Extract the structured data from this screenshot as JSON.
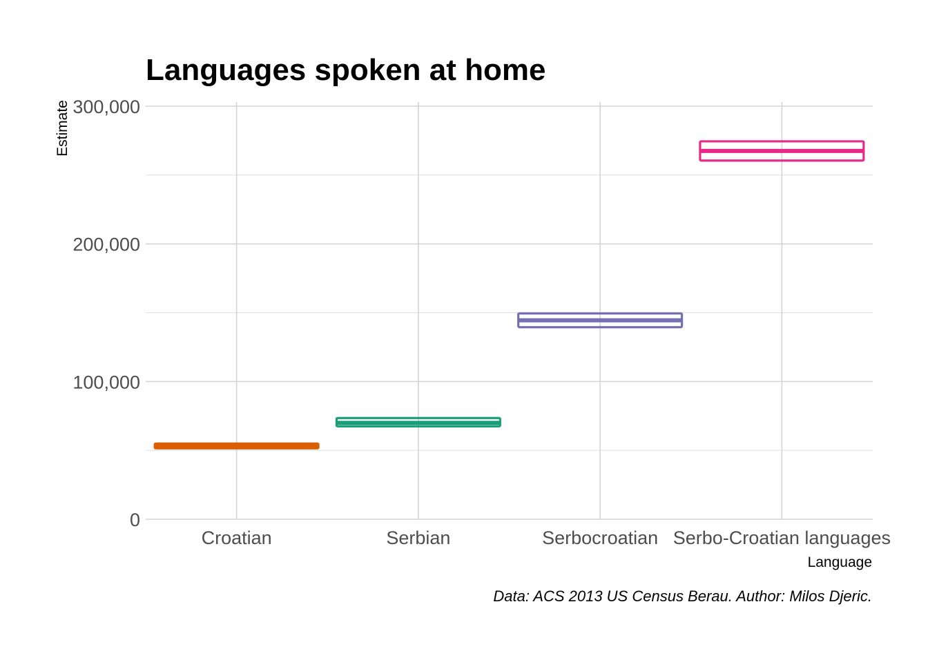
{
  "chart_data": {
    "type": "crossbar",
    "title": "Languages spoken at home",
    "xlabel": "Language",
    "ylabel": "Estimate",
    "caption": "Data: ACS 2013 US Census Berau. Author: Milos Djeric.",
    "ylim": [
      0,
      300000
    ],
    "yticks": [
      0,
      100000,
      200000,
      300000
    ],
    "ytick_labels": [
      "0",
      "100,000",
      "200,000",
      "300,000"
    ],
    "grid": true,
    "legend": "none",
    "categories": [
      "Croatian",
      "Serbian",
      "Serbocroatian",
      "Serbo-Croatian languages"
    ],
    "series": [
      {
        "category": "Croatian",
        "estimate": 53000,
        "lower": 51500,
        "upper": 55000,
        "color": "#d95f02"
      },
      {
        "category": "Serbian",
        "estimate": 70000,
        "lower": 67500,
        "upper": 73500,
        "color": "#1b9e77"
      },
      {
        "category": "Serbocroatian",
        "estimate": 144500,
        "lower": 139500,
        "upper": 149500,
        "color": "#7570b3"
      },
      {
        "category": "Serbo-Croatian languages",
        "estimate": 267500,
        "lower": 260500,
        "upper": 274500,
        "color": "#e7298a"
      }
    ]
  }
}
